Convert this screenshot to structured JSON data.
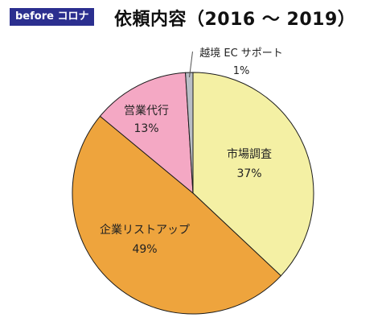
{
  "header": {
    "badge": "before コロナ",
    "title": "依頼内容（2016 〜 2019）"
  },
  "chart_data": {
    "type": "pie",
    "title": "依頼内容（2016 〜 2019）",
    "start": "12 o'clock",
    "direction": "clockwise",
    "slices": [
      {
        "label": "市場調査",
        "value": 37,
        "value_label": "37%",
        "color": "#f4f0a4"
      },
      {
        "label": "企業リストアップ",
        "value": 49,
        "value_label": "49%",
        "color": "#eea43d"
      },
      {
        "label": "営業代行",
        "value": 13,
        "value_label": "13%",
        "color": "#f4a8c4"
      },
      {
        "label": "越境 EC サポート",
        "value": 1,
        "value_label": "1%",
        "color": "#b9bec6"
      }
    ]
  }
}
